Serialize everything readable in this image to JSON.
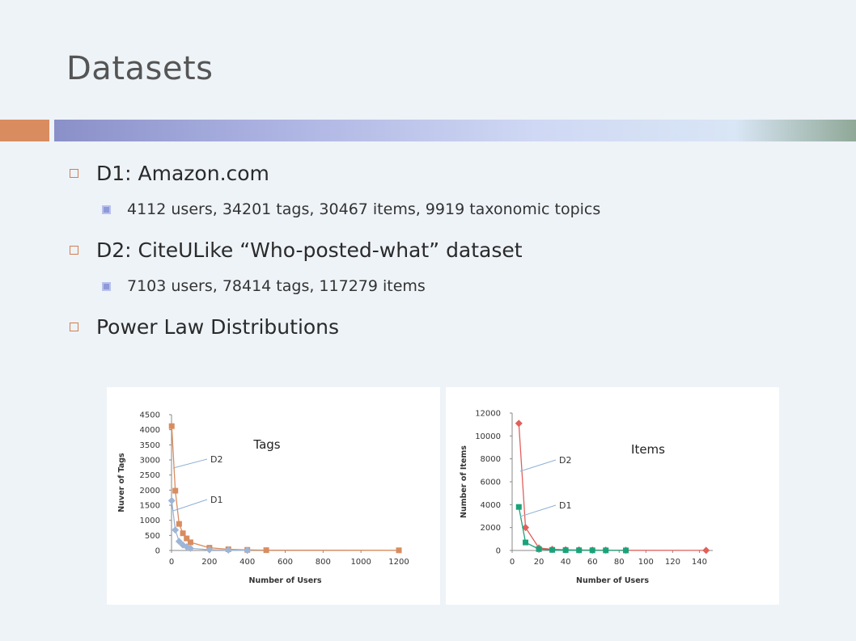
{
  "slide": {
    "title": "Datasets",
    "bullets": [
      {
        "label": "D1: Amazon.com",
        "sub": "4112 users, 34201 tags, 30467 items, 9919 taxonomic topics"
      },
      {
        "label": "D2: CiteULike “Who-posted-what” dataset",
        "sub": "7103 users, 78414 tags, 117279 items"
      },
      {
        "label": "Power Law Distributions"
      }
    ]
  },
  "chart_data": [
    {
      "type": "scatter",
      "title": "Tags",
      "xlabel": "Number of Users",
      "ylabel": "Nuver of Tags",
      "xlim": [
        0,
        1200
      ],
      "ylim": [
        0,
        4500
      ],
      "xticks": [
        "0",
        "200",
        "400",
        "600",
        "800",
        "1000",
        "1200"
      ],
      "yticks": [
        "0",
        "500",
        "1000",
        "1500",
        "2000",
        "2500",
        "3000",
        "3500",
        "4000",
        "4500"
      ],
      "series": [
        {
          "name": "D2",
          "color": "#d98c5f",
          "marker": "square",
          "x": [
            1,
            20,
            40,
            60,
            80,
            100,
            200,
            300,
            400,
            500,
            1200
          ],
          "y": [
            4120,
            1980,
            880,
            570,
            400,
            270,
            90,
            40,
            20,
            10,
            5
          ]
        },
        {
          "name": "D1",
          "color": "#9db5d6",
          "marker": "diamond",
          "x": [
            1,
            20,
            40,
            60,
            80,
            100,
            200,
            300,
            400
          ],
          "y": [
            1650,
            680,
            300,
            180,
            120,
            70,
            25,
            12,
            5
          ]
        }
      ]
    },
    {
      "type": "scatter",
      "title": "Items",
      "xlabel": "Number of Users",
      "ylabel": "Number of Items",
      "xlim": [
        0,
        150
      ],
      "ylim": [
        0,
        12000
      ],
      "xticks": [
        "0",
        "20",
        "40",
        "60",
        "80",
        "100",
        "120",
        "140"
      ],
      "yticks": [
        "0",
        "2000",
        "4000",
        "6000",
        "8000",
        "10000",
        "12000"
      ],
      "series": [
        {
          "name": "D2",
          "color": "#e0605c",
          "marker": "diamond",
          "x": [
            5,
            10,
            20,
            30,
            40,
            50,
            60,
            70,
            85,
            145
          ],
          "y": [
            11100,
            2000,
            220,
            100,
            60,
            40,
            30,
            25,
            15,
            10
          ]
        },
        {
          "name": "D1",
          "color": "#1aa37a",
          "marker": "square",
          "x": [
            5,
            10,
            20,
            30,
            40,
            50,
            60,
            70,
            85
          ],
          "y": [
            3800,
            700,
            120,
            50,
            30,
            20,
            15,
            10,
            5
          ]
        }
      ]
    }
  ]
}
